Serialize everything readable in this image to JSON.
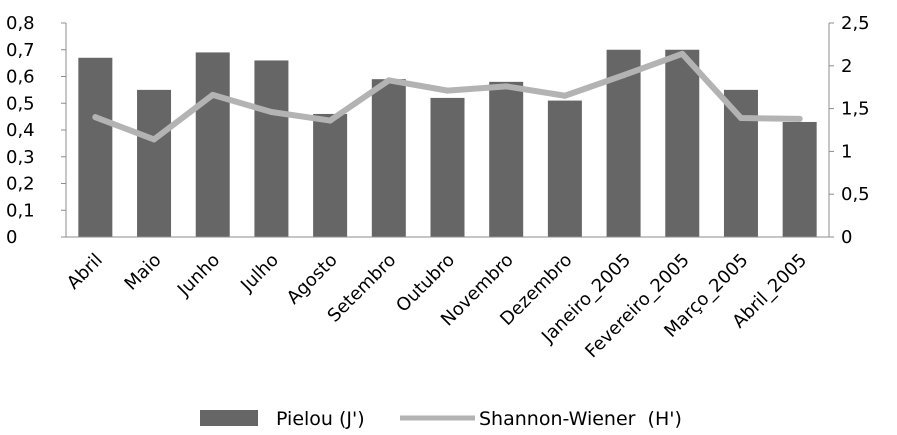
{
  "chart_data": {
    "type": "bar",
    "title": "",
    "xlabel": "",
    "ylabel": "",
    "categories": [
      "Abril",
      "Maio",
      "Junho",
      "Julho",
      "Agosto",
      "Setembro",
      "Outubro",
      "Novembro",
      "Dezembro",
      "Janeiro_2005",
      "Fevereiro_2005",
      "Março_2005",
      "Abril_2005"
    ],
    "series": [
      {
        "name": "Pielou (J')",
        "type": "bar",
        "axis": "left",
        "color": "#666666",
        "values": [
          0.67,
          0.55,
          0.69,
          0.66,
          0.46,
          0.59,
          0.52,
          0.58,
          0.51,
          0.7,
          0.7,
          0.55,
          0.43
        ]
      },
      {
        "name": "Shannon-Wiener  (H')",
        "type": "line",
        "axis": "right",
        "color": "#b3b3b3",
        "values": [
          1.4,
          1.14,
          1.66,
          1.46,
          1.36,
          1.83,
          1.71,
          1.76,
          1.65,
          1.89,
          2.14,
          1.39,
          1.38
        ]
      }
    ],
    "y_left": {
      "range": [
        0,
        0.8
      ],
      "ticks": [
        "0",
        "0,1",
        "0,2",
        "0,3",
        "0,4",
        "0,5",
        "0,6",
        "0,7",
        "0,8"
      ]
    },
    "y_right": {
      "range": [
        0,
        2.5
      ],
      "ticks": [
        "0",
        "0,5",
        "1",
        "1,5",
        "2",
        "2,5"
      ]
    },
    "grid": false,
    "legend_position": "bottom"
  }
}
